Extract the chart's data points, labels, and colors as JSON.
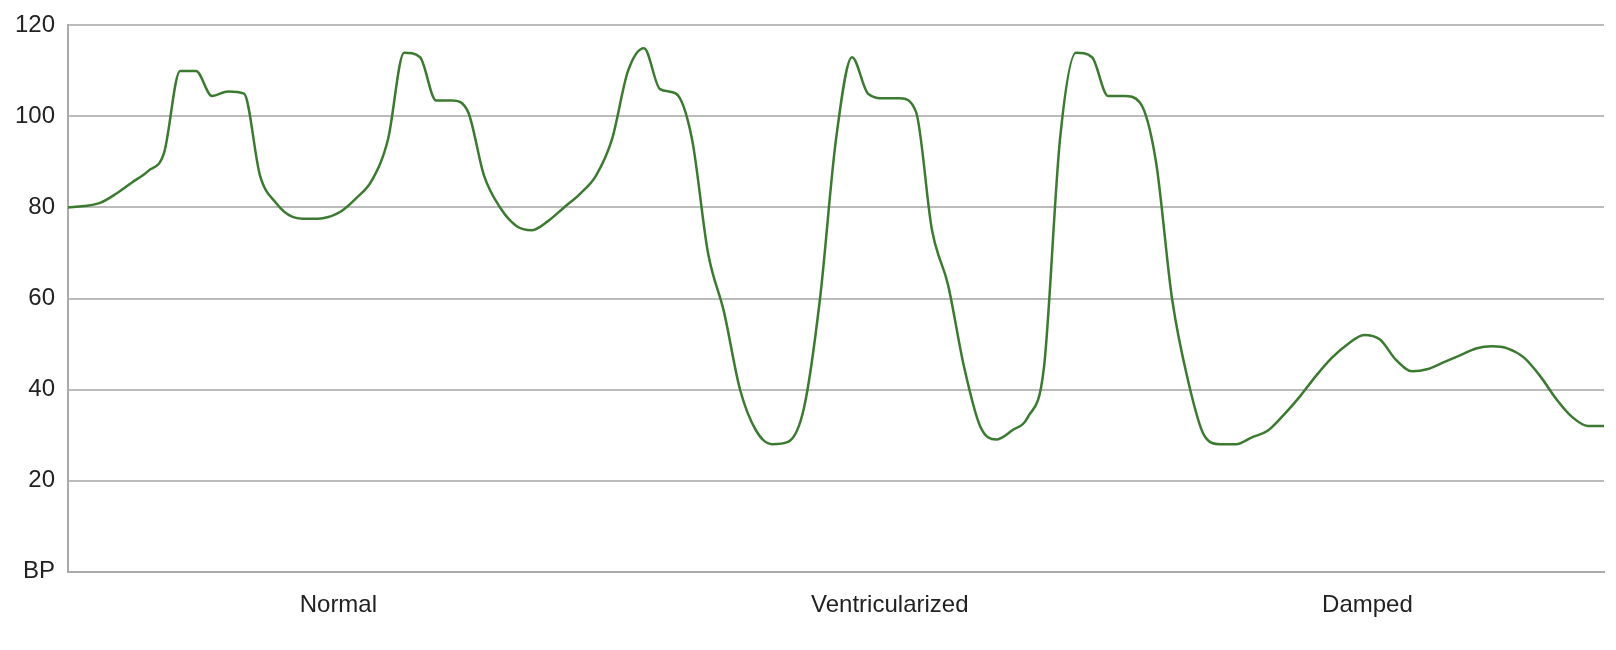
{
  "chart_data": {
    "type": "line",
    "categories": [
      null,
      null,
      null,
      null,
      null,
      null,
      null,
      null,
      null,
      null,
      null,
      null,
      null,
      null,
      null,
      null,
      null,
      null,
      null,
      null,
      null,
      null,
      null,
      null,
      null,
      null,
      null,
      null,
      null,
      null,
      null,
      null,
      null,
      null,
      null,
      null,
      null,
      null,
      null,
      null,
      null,
      null,
      null,
      null,
      null,
      null,
      null,
      null,
      null,
      null,
      null,
      null,
      null,
      null,
      null,
      null,
      null,
      null,
      null,
      null,
      null,
      null,
      null,
      null,
      null,
      null,
      null,
      null,
      null,
      null,
      null,
      null,
      null,
      null,
      null,
      null,
      null,
      null,
      null,
      null,
      null,
      null,
      null,
      null,
      null,
      null,
      null,
      null,
      null,
      null,
      null,
      null,
      null,
      null,
      null,
      null,
      null
    ],
    "series": [
      {
        "color": "#3b7a30",
        "values": [
          80,
          80.3,
          81,
          83,
          85.5,
          88,
          92,
          110,
          110,
          104.5,
          105.5,
          105,
          87,
          81,
          78,
          77.5,
          77.7,
          79,
          82,
          86,
          95,
          114,
          113,
          103.5,
          103.5,
          101,
          87,
          80,
          76,
          75,
          77,
          80,
          83,
          87,
          95,
          110,
          115,
          106,
          105,
          95,
          70,
          57,
          40,
          31,
          28,
          28.5,
          36,
          60,
          95,
          113,
          105,
          104,
          104,
          101,
          75,
          63,
          45,
          32,
          29,
          31,
          34,
          45,
          95,
          114,
          113,
          104.5,
          104.5,
          103,
          90,
          60,
          42,
          30,
          28,
          28,
          29.5,
          31,
          34.5,
          38.5,
          43,
          47,
          50,
          52,
          51,
          46.5,
          44,
          44.5,
          46,
          47.5,
          49,
          49.5,
          49,
          47,
          43,
          38,
          34,
          32,
          32
        ]
      }
    ],
    "ylim": [
      0,
      120
    ],
    "yticks": [
      {
        "value": 0,
        "label": "BP"
      },
      20,
      40,
      60,
      80,
      100,
      120
    ],
    "grid": "y",
    "marker": "none",
    "line_style": "solid",
    "legend": false,
    "annotations": [
      "Normal",
      "Ventricularized",
      "Damped"
    ]
  }
}
